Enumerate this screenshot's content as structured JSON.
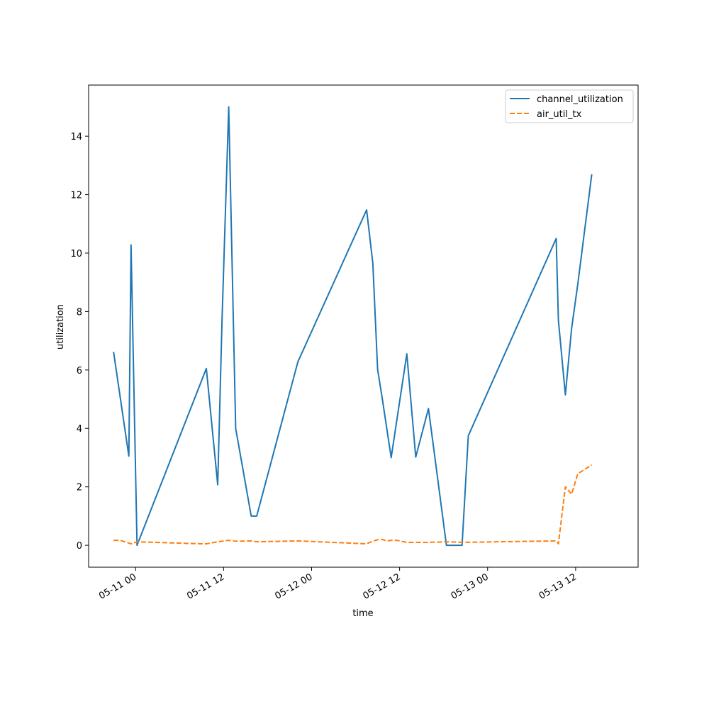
{
  "chart_data": {
    "type": "line",
    "title": "",
    "xlabel": "time",
    "ylabel": "utilization",
    "x_type": "datetime",
    "xlim": [
      "2025-05-10 17:36",
      "2025-05-13 20:31"
    ],
    "ylim": [
      -0.75,
      15.75
    ],
    "x_ticks": [
      {
        "t": "2025-05-11 00:00",
        "label": "05-11 00"
      },
      {
        "t": "2025-05-11 12:00",
        "label": "05-11 12"
      },
      {
        "t": "2025-05-12 00:00",
        "label": "05-12 00"
      },
      {
        "t": "2025-05-12 12:00",
        "label": "05-12 12"
      },
      {
        "t": "2025-05-13 00:00",
        "label": "05-13 00"
      },
      {
        "t": "2025-05-13 12:00",
        "label": "05-13 12"
      }
    ],
    "y_ticks": [
      0,
      2,
      4,
      6,
      8,
      10,
      12,
      14
    ],
    "grid": false,
    "legend_position": "top-right",
    "series": [
      {
        "name": "channel_utilization",
        "color": "#1f77b4",
        "dash": "solid",
        "points": [
          [
            "2025-05-10 21:00",
            6.62
          ],
          [
            "2025-05-10 23:05",
            3.05
          ],
          [
            "2025-05-10 23:23",
            10.28
          ],
          [
            "2025-05-11 00:12",
            0.0
          ],
          [
            "2025-05-11 09:39",
            6.05
          ],
          [
            "2025-05-11 11:12",
            2.07
          ],
          [
            "2025-05-11 11:48",
            7.8
          ],
          [
            "2025-05-11 12:42",
            15.0
          ],
          [
            "2025-05-11 13:39",
            4.0
          ],
          [
            "2025-05-11 15:46",
            1.0
          ],
          [
            "2025-05-11 16:31",
            1.0
          ],
          [
            "2025-05-11 22:08",
            6.28
          ],
          [
            "2025-05-12 07:30",
            11.48
          ],
          [
            "2025-05-12 08:21",
            9.65
          ],
          [
            "2025-05-12 09:00",
            6.02
          ],
          [
            "2025-05-12 09:39",
            5.0
          ],
          [
            "2025-05-12 10:51",
            3.0
          ],
          [
            "2025-05-12 12:59",
            6.55
          ],
          [
            "2025-05-12 14:12",
            3.02
          ],
          [
            "2025-05-12 15:56",
            4.68
          ],
          [
            "2025-05-12 18:23",
            0.0
          ],
          [
            "2025-05-12 20:31",
            0.0
          ],
          [
            "2025-05-12 21:22",
            3.75
          ],
          [
            "2025-05-13 09:21",
            10.5
          ],
          [
            "2025-05-13 09:39",
            7.7
          ],
          [
            "2025-05-13 10:36",
            5.15
          ],
          [
            "2025-05-13 11:27",
            7.42
          ],
          [
            "2025-05-13 12:18",
            8.95
          ],
          [
            "2025-05-13 14:12",
            12.7
          ]
        ]
      },
      {
        "name": "air_util_tx",
        "color": "#ff7f0e",
        "dash": "dashed",
        "points": [
          [
            "2025-05-10 21:00",
            0.17
          ],
          [
            "2025-05-10 21:55",
            0.17
          ],
          [
            "2025-05-10 23:23",
            0.05
          ],
          [
            "2025-05-11 00:12",
            0.12
          ],
          [
            "2025-05-11 09:00",
            0.05
          ],
          [
            "2025-05-11 09:39",
            0.05
          ],
          [
            "2025-05-11 11:12",
            0.12
          ],
          [
            "2025-05-11 12:42",
            0.17
          ],
          [
            "2025-05-11 13:39",
            0.14
          ],
          [
            "2025-05-11 15:46",
            0.15
          ],
          [
            "2025-05-11 16:31",
            0.12
          ],
          [
            "2025-05-11 22:08",
            0.15
          ],
          [
            "2025-05-12 07:30",
            0.05
          ],
          [
            "2025-05-12 08:21",
            0.14
          ],
          [
            "2025-05-12 09:00",
            0.19
          ],
          [
            "2025-05-12 09:39",
            0.2
          ],
          [
            "2025-05-12 10:13",
            0.15
          ],
          [
            "2025-05-12 10:51",
            0.17
          ],
          [
            "2025-05-12 11:36",
            0.17
          ],
          [
            "2025-05-12 12:59",
            0.1
          ],
          [
            "2025-05-12 15:56",
            0.1
          ],
          [
            "2025-05-12 18:23",
            0.12
          ],
          [
            "2025-05-12 20:31",
            0.1
          ],
          [
            "2025-05-13 09:21",
            0.15
          ],
          [
            "2025-05-13 09:39",
            0.05
          ],
          [
            "2025-05-13 10:36",
            2.0
          ],
          [
            "2025-05-13 11:27",
            1.75
          ],
          [
            "2025-05-13 12:18",
            2.45
          ],
          [
            "2025-05-13 14:12",
            2.75
          ]
        ]
      }
    ]
  }
}
